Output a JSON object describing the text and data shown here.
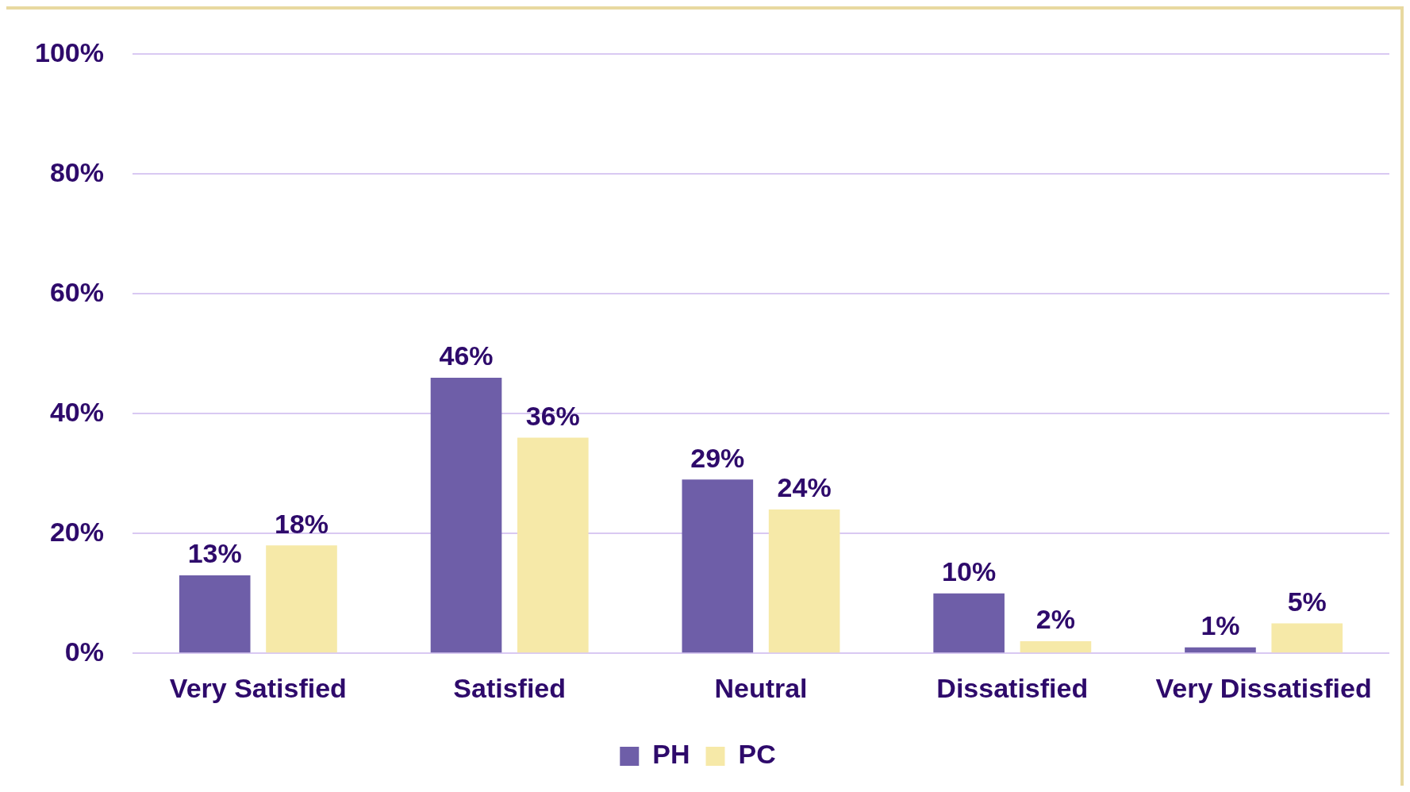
{
  "chart_data": {
    "type": "bar",
    "categories": [
      "Very Satisfied",
      "Satisfied",
      "Neutral",
      "Dissatisfied",
      "Very Dissatisfied"
    ],
    "series": [
      {
        "name": "PH",
        "color": "#6e5ea8",
        "values": [
          13,
          46,
          29,
          10,
          1
        ],
        "value_labels": [
          "13%",
          "46%",
          "29%",
          "10%",
          "1%"
        ]
      },
      {
        "name": "PC",
        "color": "#f6e9a8",
        "values": [
          18,
          36,
          24,
          2,
          5
        ],
        "value_labels": [
          "18%",
          "36%",
          "24%",
          "2%",
          "5%"
        ]
      }
    ],
    "ylim": [
      0,
      100
    ],
    "yticks": [
      {
        "value": 0,
        "label": "0%"
      },
      {
        "value": 20,
        "label": "20%"
      },
      {
        "value": 40,
        "label": "40%"
      },
      {
        "value": 60,
        "label": "60%"
      },
      {
        "value": 80,
        "label": "80%"
      },
      {
        "value": 100,
        "label": "100%"
      }
    ],
    "grid": "y",
    "legend": "bottom"
  }
}
